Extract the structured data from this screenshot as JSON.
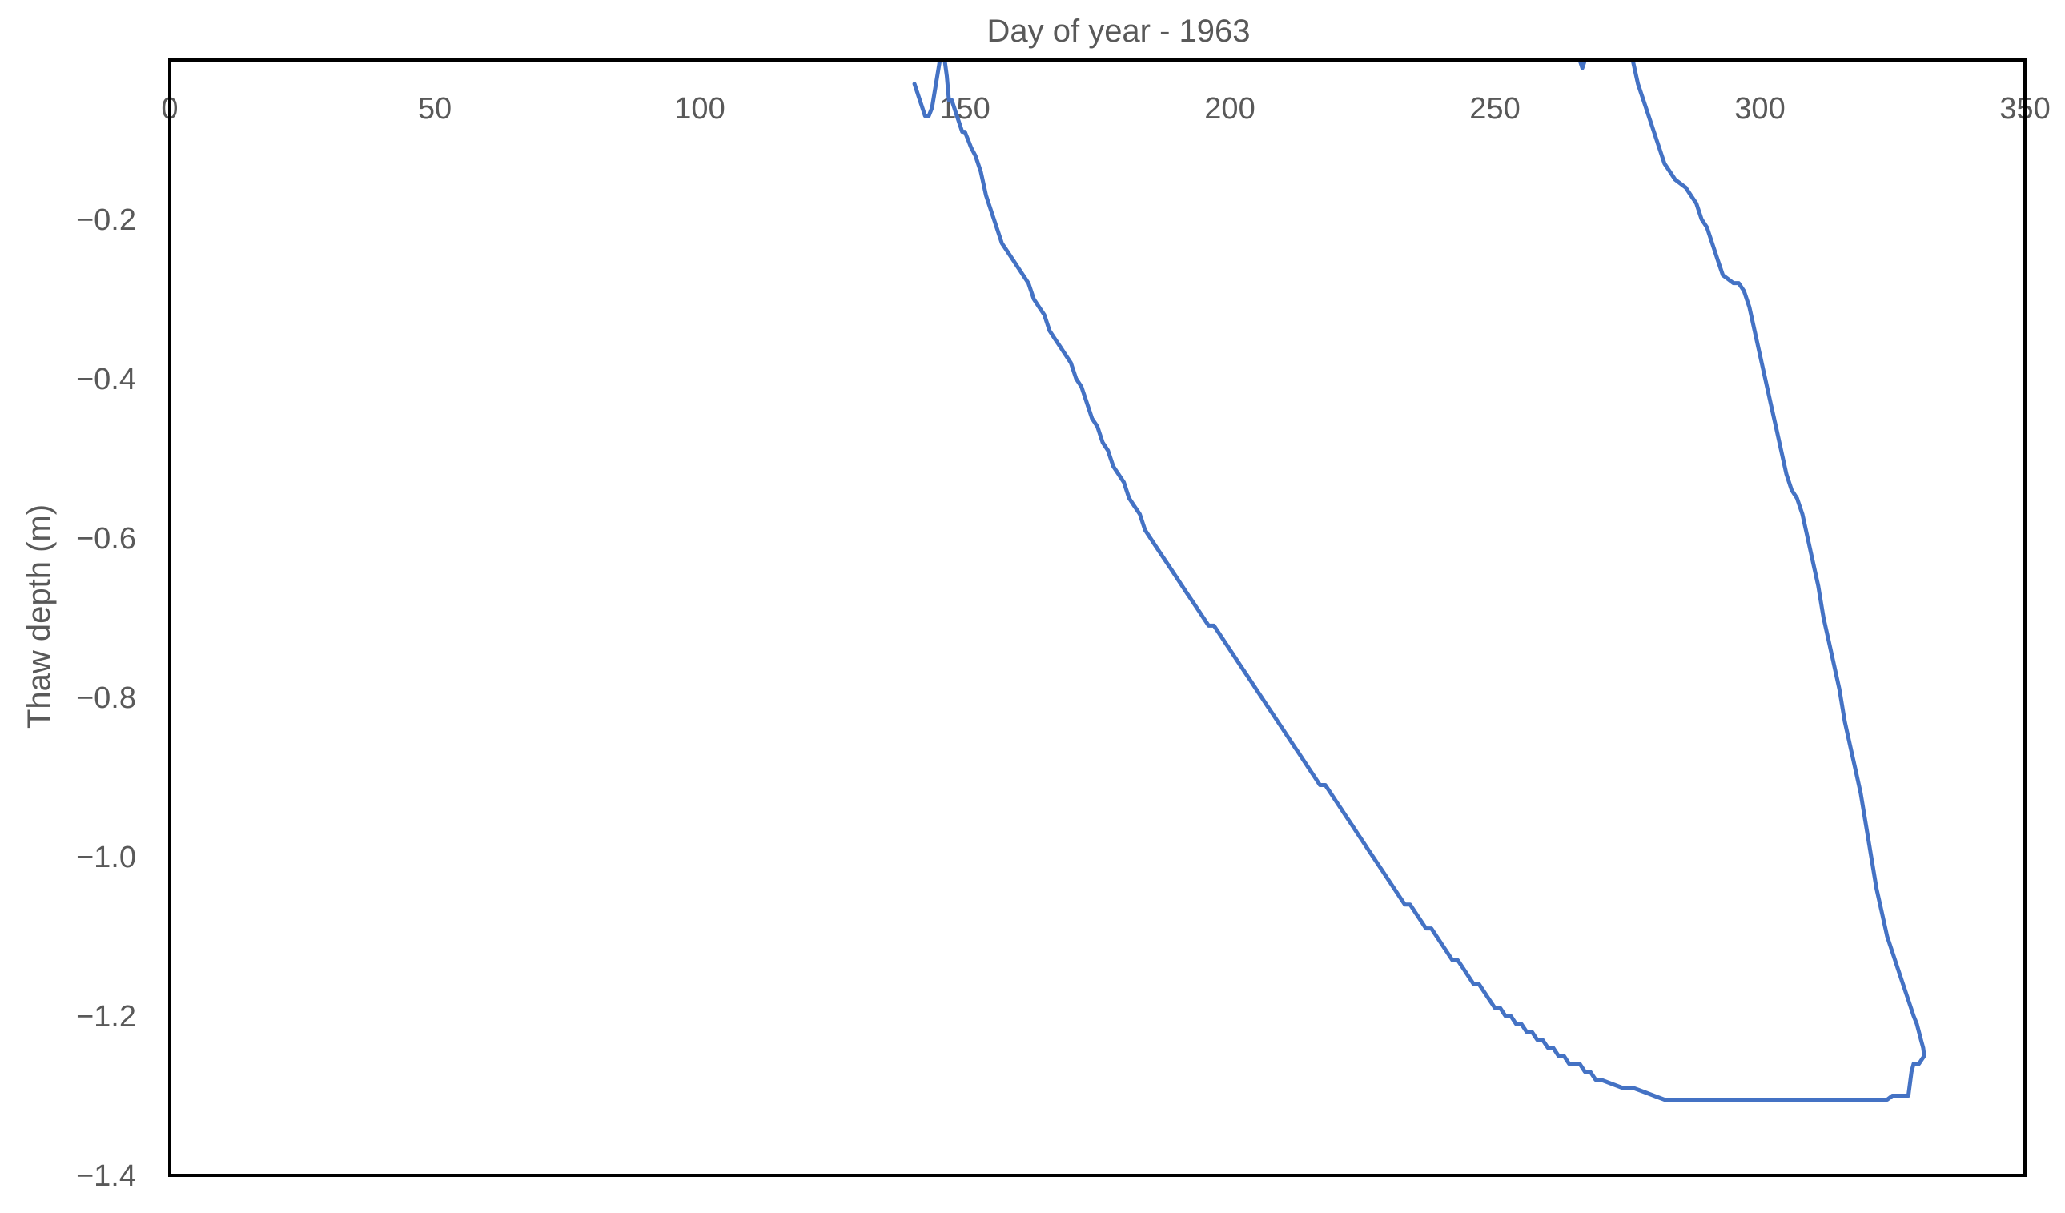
{
  "chart_data": {
    "type": "line",
    "title": "Day of year - 1963",
    "xlabel": "",
    "ylabel": "Thaw depth (m)",
    "xlim": [
      0,
      350
    ],
    "ylim": [
      -1.4,
      0
    ],
    "x_axis_position": "top",
    "xticks": [
      0,
      50,
      100,
      150,
      200,
      250,
      300,
      350
    ],
    "xtick_labels": [
      "0",
      "50",
      "100",
      "150",
      "200",
      "250",
      "300",
      "350"
    ],
    "yticks": [
      -0.2,
      -0.4,
      -0.6,
      -0.8,
      -1.0,
      -1.2,
      -1.4
    ],
    "ytick_labels": [
      "−0.2",
      "−0.4",
      "−0.6",
      "−0.8",
      "−1.0",
      "−1.2",
      "−1.4"
    ],
    "grid": false,
    "legend": "none",
    "series": [
      {
        "color": "#4472C4",
        "x": [
          140.5,
          141.5,
          142.5,
          143.2,
          143.8,
          144.3,
          144.8,
          145.3,
          145.8,
          146.2,
          146.6,
          147.0,
          147.5,
          148.0,
          148.5,
          149.0,
          149.5,
          150.0,
          150.6,
          151.2,
          152.0,
          153.0,
          154.0,
          155.0,
          156.0,
          157.0,
          158.0,
          159.0,
          160.0,
          161.0,
          162.0,
          163.0,
          164.0,
          165.0,
          166.0,
          167.0,
          168.0,
          169.0,
          170.0,
          171.0,
          172.0,
          173.0,
          174.0,
          175.0,
          176.0,
          177.0,
          178.0,
          179.0,
          180.0,
          181.0,
          182.0,
          183.0,
          184.0,
          185.0,
          186.0,
          187.0,
          188.0,
          189.0,
          190.0,
          191.0,
          192.0,
          193.0,
          194.0,
          195.0,
          196.0,
          197.0,
          198.0,
          199.0,
          200.0,
          201.0,
          202.0,
          203.0,
          204.0,
          205.0,
          206.0,
          207.0,
          208.0,
          209.0,
          210.0,
          211.0,
          212.0,
          213.0,
          214.0,
          215.0,
          216.0,
          217.0,
          218.0,
          219.0,
          220.0,
          221.0,
          222.0,
          223.0,
          224.0,
          225.0,
          226.0,
          227.0,
          228.0,
          229.0,
          230.0,
          231.0,
          232.0,
          233.0,
          234.0,
          235.0,
          236.0,
          237.0,
          238.0,
          239.0,
          240.0,
          241.0,
          242.0,
          243.0,
          244.0,
          245.0,
          246.0,
          247.0,
          248.0,
          249.0,
          250.0,
          251.0,
          252.0,
          253.0,
          254.0,
          255.0,
          256.0,
          257.0,
          258.0,
          259.0,
          260.0,
          261.0,
          262.0,
          263.0,
          264.0,
          265.0,
          266.0,
          267.0,
          268.0,
          269.0,
          270.0,
          272.0,
          274.0,
          276.0,
          278.0,
          280.0,
          282.0,
          284.0,
          286.0,
          288.0,
          290.0,
          295.0,
          300.0,
          305.0,
          310.0,
          315.0,
          318.0,
          320.0,
          322.0,
          324.0,
          325.0,
          326.0,
          327.0,
          328.0,
          328.2,
          328.4,
          328.6,
          329.0,
          329.5,
          330.0,
          330.5,
          331.0,
          330.8,
          330.4,
          330.0,
          329.6,
          329.0,
          328.0,
          327.0,
          326.0,
          325.0,
          324.0,
          323.0,
          322.0,
          321.0,
          320.0,
          319.0,
          318.0,
          317.0,
          316.0,
          315.0,
          314.0,
          313.0,
          312.0,
          311.0,
          310.0,
          309.0,
          308.0,
          307.0,
          306.0,
          305.0,
          304.0,
          303.0,
          302.0,
          301.0,
          300.0,
          299.0,
          298.0,
          297.0,
          296.0,
          295.0,
          294.0,
          293.0,
          292.0,
          291.0,
          290.0,
          289.0,
          288.0,
          287.0,
          286.0,
          285.0,
          284.0,
          283.0,
          282.0,
          281.0,
          280.0,
          279.0,
          278.0,
          277.0,
          276.0,
          275.5,
          275.0,
          274.5,
          274.2,
          274.0,
          273.8,
          272.0,
          270.0,
          268.0,
          267.5,
          267.0,
          266.5,
          266.0,
          265.5,
          265.0
        ],
        "y": [
          -0.03,
          -0.05,
          -0.07,
          -0.07,
          -0.06,
          -0.04,
          -0.02,
          -0.0,
          -0.0,
          -0.0,
          -0.02,
          -0.05,
          -0.05,
          -0.06,
          -0.07,
          -0.08,
          -0.09,
          -0.09,
          -0.1,
          -0.11,
          -0.12,
          -0.14,
          -0.17,
          -0.19,
          -0.21,
          -0.23,
          -0.24,
          -0.25,
          -0.26,
          -0.27,
          -0.28,
          -0.3,
          -0.31,
          -0.32,
          -0.34,
          -0.35,
          -0.36,
          -0.37,
          -0.38,
          -0.4,
          -0.41,
          -0.43,
          -0.45,
          -0.46,
          -0.48,
          -0.49,
          -0.51,
          -0.52,
          -0.53,
          -0.55,
          -0.56,
          -0.57,
          -0.59,
          -0.6,
          -0.61,
          -0.62,
          -0.63,
          -0.64,
          -0.65,
          -0.66,
          -0.67,
          -0.68,
          -0.69,
          -0.7,
          -0.71,
          -0.71,
          -0.72,
          -0.73,
          -0.74,
          -0.75,
          -0.76,
          -0.77,
          -0.78,
          -0.79,
          -0.8,
          -0.81,
          -0.82,
          -0.83,
          -0.84,
          -0.85,
          -0.86,
          -0.87,
          -0.88,
          -0.89,
          -0.9,
          -0.91,
          -0.91,
          -0.92,
          -0.93,
          -0.94,
          -0.95,
          -0.96,
          -0.97,
          -0.98,
          -0.99,
          -1.0,
          -1.01,
          -1.02,
          -1.03,
          -1.04,
          -1.05,
          -1.06,
          -1.06,
          -1.07,
          -1.08,
          -1.09,
          -1.09,
          -1.1,
          -1.11,
          -1.12,
          -1.13,
          -1.13,
          -1.14,
          -1.15,
          -1.16,
          -1.16,
          -1.17,
          -1.18,
          -1.19,
          -1.19,
          -1.2,
          -1.2,
          -1.21,
          -1.21,
          -1.22,
          -1.22,
          -1.23,
          -1.23,
          -1.24,
          -1.24,
          -1.25,
          -1.25,
          -1.26,
          -1.26,
          -1.26,
          -1.27,
          -1.27,
          -1.28,
          -1.28,
          -1.285,
          -1.29,
          -1.29,
          -1.295,
          -1.3,
          -1.305,
          -1.305,
          -1.305,
          -1.305,
          -1.305,
          -1.305,
          -1.305,
          -1.305,
          -1.305,
          -1.305,
          -1.305,
          -1.305,
          -1.305,
          -1.305,
          -1.3,
          -1.3,
          -1.3,
          -1.3,
          -1.29,
          -1.28,
          -1.27,
          -1.26,
          -1.26,
          -1.26,
          -1.255,
          -1.25,
          -1.24,
          -1.23,
          -1.22,
          -1.21,
          -1.2,
          -1.18,
          -1.16,
          -1.14,
          -1.12,
          -1.1,
          -1.07,
          -1.04,
          -1.0,
          -0.96,
          -0.92,
          -0.89,
          -0.86,
          -0.83,
          -0.79,
          -0.76,
          -0.73,
          -0.7,
          -0.66,
          -0.63,
          -0.6,
          -0.57,
          -0.55,
          -0.54,
          -0.52,
          -0.49,
          -0.46,
          -0.43,
          -0.4,
          -0.37,
          -0.34,
          -0.31,
          -0.29,
          -0.28,
          -0.28,
          -0.275,
          -0.27,
          -0.25,
          -0.23,
          -0.21,
          -0.2,
          -0.18,
          -0.17,
          -0.16,
          -0.155,
          -0.15,
          -0.14,
          -0.13,
          -0.11,
          -0.09,
          -0.07,
          -0.05,
          -0.03,
          -0.0,
          -0.0,
          -0.0,
          -0.0,
          -0.0,
          -0.0,
          -0.0,
          -0.0,
          -0.0,
          -0.0,
          -0.0,
          -0.0,
          -0.01,
          -0.0,
          -0.0,
          -0.0
        ]
      }
    ]
  }
}
